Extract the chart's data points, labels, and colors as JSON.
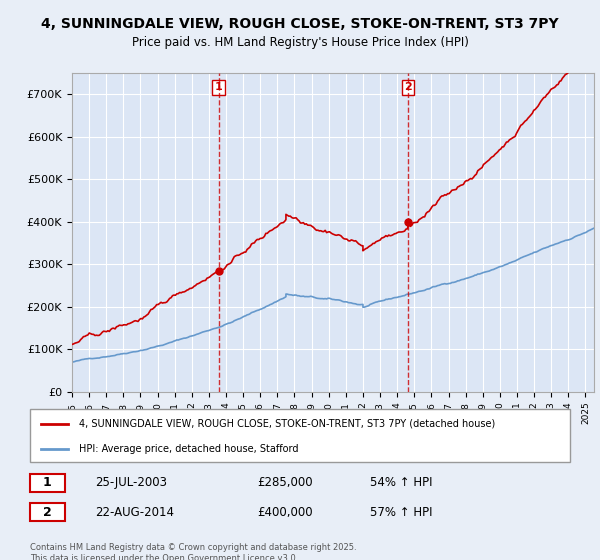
{
  "title": "4, SUNNINGDALE VIEW, ROUGH CLOSE, STOKE-ON-TRENT, ST3 7PY",
  "subtitle": "Price paid vs. HM Land Registry's House Price Index (HPI)",
  "bg_color": "#e8eef7",
  "plot_bg_color": "#dce6f5",
  "grid_color": "#ffffff",
  "sale1_date": 2003.56,
  "sale1_price": 285000,
  "sale1_label": "1",
  "sale2_date": 2014.64,
  "sale2_price": 400000,
  "sale2_label": "2",
  "hpi_color": "#6699cc",
  "property_color": "#cc0000",
  "vline_color": "#cc0000",
  "marker_color": "#cc0000",
  "ylim_max": 750000,
  "xlim_min": 1995.0,
  "xlim_max": 2025.5,
  "legend_entries": [
    "4, SUNNINGDALE VIEW, ROUGH CLOSE, STOKE-ON-TRENT, ST3 7PY (detached house)",
    "HPI: Average price, detached house, Stafford"
  ],
  "annotation1": [
    "1",
    "25-JUL-2003",
    "£285,000",
    "54% ↑ HPI"
  ],
  "annotation2": [
    "2",
    "22-AUG-2014",
    "£400,000",
    "57% ↑ HPI"
  ],
  "footer": "Contains HM Land Registry data © Crown copyright and database right 2025.\nThis data is licensed under the Open Government Licence v3.0."
}
